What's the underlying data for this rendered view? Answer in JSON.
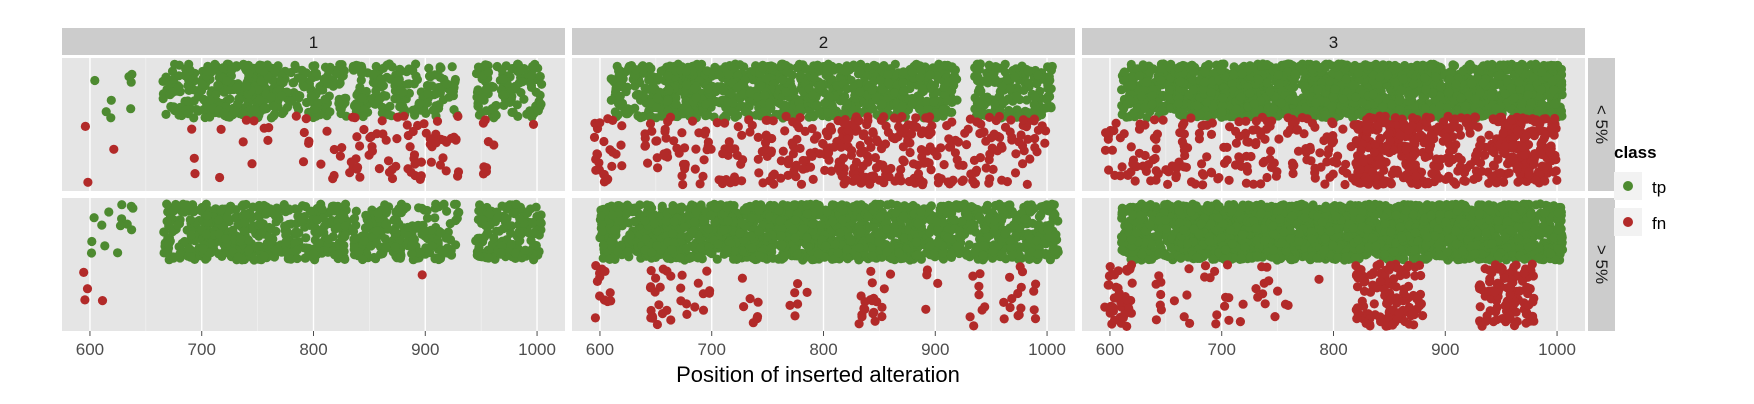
{
  "chart_data": {
    "type": "scatter",
    "subtype": "faceted jittered scatter (strip plot)",
    "xlabel": "Position of inserted alteration",
    "ylabel": "",
    "x_ticks": [
      600,
      700,
      800,
      900,
      1000
    ],
    "xlim": [
      575,
      1025
    ],
    "column_facets": [
      "1",
      "2",
      "3"
    ],
    "row_facets": [
      "< 5%",
      "> 5%"
    ],
    "legend": {
      "title": "class",
      "position": "right",
      "entries": [
        {
          "label": "tp",
          "color": "#4d8a30"
        },
        {
          "label": "fn",
          "color": "#b22a29"
        }
      ]
    },
    "colors": {
      "panel_background": "#e5e5e5",
      "grid": "#ffffff",
      "strip_background": "#cccccc",
      "tp": "#4d8a30",
      "fn": "#b22a29"
    },
    "grid": true,
    "panels": [
      {
        "col": "1",
        "row": "< 5%",
        "tp_clusters": [
          {
            "x": [
              603,
              605
            ],
            "n": 1
          },
          {
            "x": [
              613,
              622
            ],
            "n": 3
          },
          {
            "x": [
              628,
              640
            ],
            "n": 4
          },
          {
            "x": [
              665,
              700
            ],
            "n": 60
          },
          {
            "x": [
              700,
              770
            ],
            "n": 210
          },
          {
            "x": [
              770,
              830
            ],
            "n": 110
          },
          {
            "x": [
              835,
              880
            ],
            "n": 90
          },
          {
            "x": [
              880,
              930
            ],
            "n": 70
          },
          {
            "x": [
              945,
              1005
            ],
            "n": 120
          }
        ],
        "fn_clusters": [
          {
            "x": [
              595,
              600
            ],
            "n": 2
          },
          {
            "x": [
              620,
              622
            ],
            "n": 1
          },
          {
            "x": [
              685,
              760
            ],
            "n": 12
          },
          {
            "x": [
              770,
              800
            ],
            "n": 6
          },
          {
            "x": [
              800,
              850
            ],
            "n": 20
          },
          {
            "x": [
              850,
              875
            ],
            "n": 15
          },
          {
            "x": [
              875,
              930
            ],
            "n": 40
          },
          {
            "x": [
              950,
              965
            ],
            "n": 8
          },
          {
            "x": [
              995,
              1000
            ],
            "n": 1
          }
        ]
      },
      {
        "col": "1",
        "row": "> 5%",
        "tp_clusters": [
          {
            "x": [
              600,
              612
            ],
            "n": 4
          },
          {
            "x": [
              612,
              640
            ],
            "n": 10
          },
          {
            "x": [
              665,
              700
            ],
            "n": 80
          },
          {
            "x": [
              700,
              770
            ],
            "n": 240
          },
          {
            "x": [
              770,
              830
            ],
            "n": 150
          },
          {
            "x": [
              835,
              880
            ],
            "n": 120
          },
          {
            "x": [
              880,
              930
            ],
            "n": 90
          },
          {
            "x": [
              945,
              1005
            ],
            "n": 150
          }
        ],
        "fn_clusters": [
          {
            "x": [
              594,
              598
            ],
            "n": 3
          },
          {
            "x": [
              610,
              612
            ],
            "n": 1
          },
          {
            "x": [
              896,
              898
            ],
            "n": 1
          }
        ]
      },
      {
        "col": "2",
        "row": "< 5%",
        "tp_clusters": [
          {
            "x": [
              610,
              660
            ],
            "n": 110
          },
          {
            "x": [
              660,
              760
            ],
            "n": 380
          },
          {
            "x": [
              760,
              870
            ],
            "n": 360
          },
          {
            "x": [
              870,
              920
            ],
            "n": 140
          },
          {
            "x": [
              935,
              1005
            ],
            "n": 160
          }
        ],
        "fn_clusters": [
          {
            "x": [
              595,
              620
            ],
            "n": 25
          },
          {
            "x": [
              640,
              700
            ],
            "n": 45
          },
          {
            "x": [
              700,
              760
            ],
            "n": 45
          },
          {
            "x": [
              760,
              820
            ],
            "n": 70
          },
          {
            "x": [
              820,
              900
            ],
            "n": 130
          },
          {
            "x": [
              900,
              1000
            ],
            "n": 90
          }
        ]
      },
      {
        "col": "2",
        "row": "> 5%",
        "tp_clusters": [
          {
            "x": [
              600,
              640
            ],
            "n": 150
          },
          {
            "x": [
              640,
              760
            ],
            "n": 520
          },
          {
            "x": [
              760,
              880
            ],
            "n": 520
          },
          {
            "x": [
              880,
              1010
            ],
            "n": 420
          }
        ],
        "fn_clusters": [
          {
            "x": [
              595,
              610
            ],
            "n": 12
          },
          {
            "x": [
              645,
              665
            ],
            "n": 18
          },
          {
            "x": [
              670,
              700
            ],
            "n": 12
          },
          {
            "x": [
              725,
              745
            ],
            "n": 8
          },
          {
            "x": [
              770,
              790
            ],
            "n": 6
          },
          {
            "x": [
              830,
              860
            ],
            "n": 20
          },
          {
            "x": [
              890,
              905
            ],
            "n": 4
          },
          {
            "x": [
              930,
              945
            ],
            "n": 8
          },
          {
            "x": [
              960,
              990
            ],
            "n": 16
          }
        ]
      },
      {
        "col": "3",
        "row": "< 5%",
        "tp_clusters": [
          {
            "x": [
              610,
              660
            ],
            "n": 160
          },
          {
            "x": [
              660,
              780
            ],
            "n": 600
          },
          {
            "x": [
              780,
              880
            ],
            "n": 480
          },
          {
            "x": [
              880,
              1005
            ],
            "n": 560
          }
        ],
        "fn_clusters": [
          {
            "x": [
              595,
              640
            ],
            "n": 35
          },
          {
            "x": [
              640,
              720
            ],
            "n": 60
          },
          {
            "x": [
              720,
              820
            ],
            "n": 90
          },
          {
            "x": [
              820,
              880
            ],
            "n": 220
          },
          {
            "x": [
              880,
              940
            ],
            "n": 100
          },
          {
            "x": [
              940,
              1000
            ],
            "n": 190
          }
        ]
      },
      {
        "col": "3",
        "row": "> 5%",
        "tp_clusters": [
          {
            "x": [
              610,
              660
            ],
            "n": 200
          },
          {
            "x": [
              660,
              780
            ],
            "n": 760
          },
          {
            "x": [
              780,
              880
            ],
            "n": 620
          },
          {
            "x": [
              880,
              1005
            ],
            "n": 700
          }
        ],
        "fn_clusters": [
          {
            "x": [
              595,
              620
            ],
            "n": 40
          },
          {
            "x": [
              640,
              720
            ],
            "n": 25
          },
          {
            "x": [
              730,
              760
            ],
            "n": 12
          },
          {
            "x": [
              785,
              790
            ],
            "n": 1
          },
          {
            "x": [
              820,
              880
            ],
            "n": 120
          },
          {
            "x": [
              930,
              980
            ],
            "n": 110
          }
        ]
      }
    ]
  }
}
